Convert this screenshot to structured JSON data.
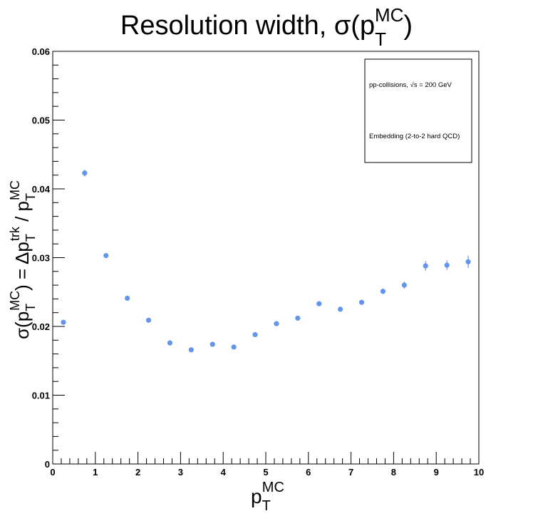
{
  "chart_data": {
    "type": "scatter",
    "title": {
      "main": "Resolution width, σ(p",
      "sub": "T",
      "sup": "MC",
      "close": ")"
    },
    "xlabel": {
      "main": "p",
      "sub": "T",
      "sup": "MC"
    },
    "ylabel": {
      "part1": "σ(p",
      "part1_sub": "T",
      "part1_sup": "MC",
      "part2": ") = Δp",
      "part2_sub": "T",
      "part2_sup": "trk",
      "part3": " / p",
      "part3_sub": "T",
      "part3_sup": "MC"
    },
    "xlim": [
      0,
      10
    ],
    "ylim": [
      0,
      0.06
    ],
    "x_ticks": [
      "0",
      "1",
      "2",
      "3",
      "4",
      "5",
      "6",
      "7",
      "8",
      "9",
      "10"
    ],
    "y_ticks": [
      "0",
      "0.01",
      "0.02",
      "0.03",
      "0.04",
      "0.05",
      "0.06"
    ],
    "grid": false,
    "legend_position": "top-right",
    "legend": [
      "pp-collisions, √s = 200 GeV",
      "Embedding (2-to-2 hard QCD)"
    ],
    "marker_color": "#6495ed",
    "series": [
      {
        "x": [
          0.25,
          0.75,
          1.25,
          1.75,
          2.25,
          2.75,
          3.25,
          3.75,
          4.25,
          4.75,
          5.25,
          5.75,
          6.25,
          6.75,
          7.25,
          7.75,
          8.25,
          8.75,
          9.25,
          9.75
        ],
        "y": [
          0.0206,
          0.0423,
          0.0303,
          0.0241,
          0.0209,
          0.0176,
          0.0166,
          0.0174,
          0.017,
          0.0188,
          0.0204,
          0.0212,
          0.0233,
          0.0225,
          0.0235,
          0.0251,
          0.026,
          0.0288,
          0.0289,
          0.0294
        ],
        "yerr": [
          0.0003,
          0.0005,
          0.0003,
          0.0002,
          0.0002,
          0.0002,
          0.0002,
          0.0002,
          0.0002,
          0.0002,
          0.0002,
          0.0002,
          0.0003,
          0.0003,
          0.0003,
          0.0004,
          0.0005,
          0.0007,
          0.0007,
          0.0009
        ]
      }
    ]
  }
}
